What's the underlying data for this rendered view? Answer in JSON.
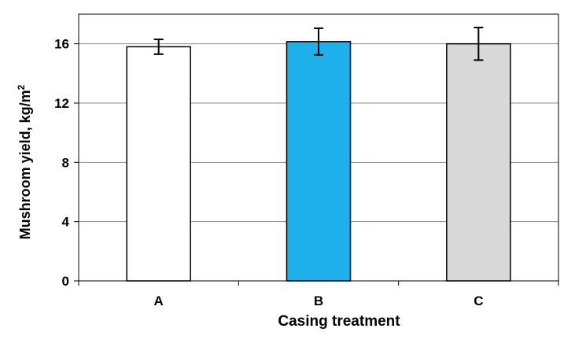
{
  "chart_data": {
    "type": "bar",
    "title": "",
    "xlabel": "Casing treatment",
    "ylabel": "Mushroom yield, kg/m",
    "ylabel_superscript": "2",
    "categories": [
      "A",
      "B",
      "C"
    ],
    "values": [
      15.8,
      16.15,
      16.0
    ],
    "errors": [
      0.5,
      0.9,
      1.1
    ],
    "bar_colors": [
      "#ffffff",
      "#1eb0ea",
      "#d9d9d9"
    ],
    "ylim": [
      0,
      18
    ],
    "yticks": [
      0,
      4,
      8,
      12,
      16
    ],
    "ytick_labels": [
      "0",
      "4",
      "8",
      "12",
      "16"
    ],
    "grid": true,
    "legend": "none"
  }
}
